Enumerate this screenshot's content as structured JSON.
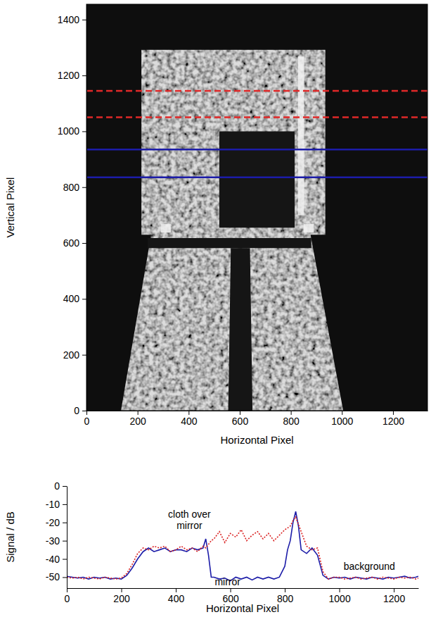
{
  "chart_data": [
    {
      "type": "image",
      "xlabel": "Horizontal Pixel",
      "ylabel": "Vertical Pixel",
      "xlim": [
        0,
        1335
      ],
      "ylim": [
        0,
        1455
      ],
      "xticks": [
        0,
        200,
        400,
        600,
        800,
        1000,
        1200
      ],
      "yticks": [
        0,
        200,
        400,
        600,
        800,
        1000,
        1200,
        1400
      ],
      "regions": [
        {
          "kind": "bright",
          "points": [
            [
              215,
              630
            ],
            [
              935,
              630
            ],
            [
              935,
              1292
            ],
            [
              215,
              1292
            ]
          ]
        },
        {
          "kind": "bright",
          "points": [
            [
              135,
              0
            ],
            [
              1005,
              0
            ],
            [
              875,
              640
            ],
            [
              255,
              640
            ]
          ]
        },
        {
          "kind": "dark",
          "points": [
            [
              520,
              655
            ],
            [
              815,
              655
            ],
            [
              815,
              1000
            ],
            [
              520,
              1000
            ]
          ]
        },
        {
          "kind": "dark",
          "points": [
            [
              240,
              582
            ],
            [
              880,
              582
            ],
            [
              880,
              618
            ],
            [
              240,
              618
            ]
          ]
        },
        {
          "kind": "dark",
          "points": [
            [
              555,
              0
            ],
            [
              650,
              0
            ],
            [
              640,
              582
            ],
            [
              565,
              582
            ]
          ]
        },
        {
          "kind": "highlight",
          "points": [
            [
              292,
              638
            ],
            [
              330,
              638
            ],
            [
              330,
              668
            ],
            [
              292,
              668
            ]
          ]
        },
        {
          "kind": "highlight",
          "points": [
            [
              850,
              638
            ],
            [
              890,
              638
            ],
            [
              890,
              668
            ],
            [
              850,
              668
            ]
          ]
        },
        {
          "kind": "highlight",
          "points": [
            [
              828,
              700
            ],
            [
              852,
              700
            ],
            [
              852,
              1268
            ],
            [
              828,
              1268
            ]
          ]
        }
      ],
      "lines": [
        {
          "y": 1145,
          "color": "#e02828",
          "line_style": "dashed"
        },
        {
          "y": 1050,
          "color": "#e02828",
          "line_style": "dashed"
        },
        {
          "y": 935,
          "color": "#1c1ca8",
          "line_style": "solid"
        },
        {
          "y": 835,
          "color": "#1c1ca8",
          "line_style": "solid"
        }
      ]
    },
    {
      "type": "line",
      "xlabel": "Horizontal Pixel",
      "ylabel": "Signal / dB",
      "xlim": [
        0,
        1290
      ],
      "ylim": [
        -56,
        0
      ],
      "xticks": [
        0,
        200,
        400,
        600,
        800,
        1000,
        1200
      ],
      "yticks": [
        0,
        -10,
        -20,
        -30,
        -40,
        -50
      ],
      "x": [
        0,
        20,
        40,
        60,
        80,
        100,
        120,
        140,
        160,
        180,
        200,
        220,
        240,
        260,
        280,
        300,
        320,
        340,
        360,
        380,
        400,
        420,
        440,
        460,
        480,
        500,
        510,
        520,
        530,
        540,
        560,
        580,
        600,
        620,
        640,
        660,
        680,
        700,
        720,
        740,
        760,
        780,
        800,
        810,
        820,
        830,
        840,
        850,
        860,
        880,
        900,
        920,
        940,
        960,
        980,
        1000,
        1020,
        1040,
        1060,
        1080,
        1100,
        1120,
        1140,
        1160,
        1180,
        1200,
        1220,
        1240,
        1260,
        1280,
        1290
      ],
      "series": [
        {
          "color": "#1c1ca8",
          "line_style": "solid",
          "values": [
            -49.5,
            -50,
            -50.5,
            -50,
            -51,
            -50,
            -50.5,
            -50,
            -51,
            -50.5,
            -51,
            -49,
            -45,
            -40,
            -36,
            -34,
            -36,
            -35,
            -34,
            -36,
            -35,
            -35,
            -36,
            -34,
            -35,
            -34,
            -29,
            -38,
            -50,
            -50,
            -51,
            -50.5,
            -52,
            -50,
            -51,
            -50,
            -51.5,
            -50,
            -51,
            -50,
            -51,
            -50,
            -44,
            -35,
            -30,
            -20,
            -14,
            -22,
            -35,
            -37,
            -34,
            -38,
            -49,
            -51,
            -50,
            -50.5,
            -50,
            -51,
            -50,
            -50.5,
            -51,
            -50,
            -50.5,
            -51,
            -50,
            -50.5,
            -50,
            -49.5,
            -50.5,
            -50,
            -49.5
          ]
        },
        {
          "color": "#d92020",
          "line_style": "dotted",
          "values": [
            -50,
            -50.5,
            -50,
            -51,
            -50,
            -50.5,
            -51,
            -50,
            -50.5,
            -51,
            -50.5,
            -48,
            -43,
            -37,
            -34,
            -35,
            -33,
            -34,
            -33,
            -36,
            -35,
            -33,
            -35,
            -34,
            -36,
            -33,
            -34,
            -32,
            -30,
            -29,
            -25,
            -31,
            -26,
            -28,
            -24,
            -30,
            -27,
            -25,
            -29,
            -26,
            -30,
            -27,
            -24,
            -23,
            -22,
            -19,
            -17,
            -21,
            -25,
            -33,
            -35,
            -34,
            -47,
            -51,
            -50,
            -50,
            -51,
            -50.5,
            -50,
            -51,
            -50.5,
            -50,
            -51,
            -50,
            -50.5,
            -51,
            -50,
            -50.5,
            -50,
            -51,
            -50.5
          ]
        }
      ],
      "annotations": [
        {
          "text": "cloth over mirror",
          "x": 450,
          "y": -17.5
        },
        {
          "text": "mirror",
          "x": 590,
          "y": -54.6
        },
        {
          "text": "background",
          "x": 1110,
          "y": -46
        }
      ]
    }
  ]
}
